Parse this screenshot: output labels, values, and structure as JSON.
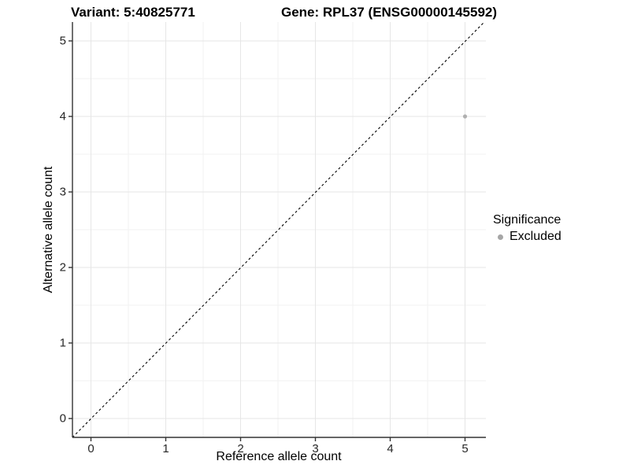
{
  "chart_data": {
    "type": "scatter",
    "title_left": "Variant: 5:40825771",
    "title_right": "Gene: RPL37 (ENSG00000145592)",
    "xlabel": "Reference allele count",
    "ylabel": "Alternative allele count",
    "xlim": [
      -0.25,
      5.3
    ],
    "ylim": [
      -0.25,
      5.25
    ],
    "x_ticks": [
      0,
      1,
      2,
      3,
      4,
      5
    ],
    "y_ticks": [
      0,
      1,
      2,
      3,
      4,
      5
    ],
    "grid": "major+minor",
    "points": [
      {
        "x": 5,
        "y": 4,
        "significance": "Excluded"
      }
    ],
    "reference_line": {
      "type": "identity",
      "style": "dashed"
    },
    "legend": {
      "title": "Significance",
      "position": "right",
      "entries": [
        {
          "label": "Excluded",
          "color": "#a6a6a6"
        }
      ]
    }
  },
  "colors": {
    "background": "#ffffff",
    "point": "#b0b0b0",
    "legend_dot": "#a6a6a6",
    "grid_major": "#e6e6e6",
    "grid_minor": "#f2f2f2",
    "axis_line": "#333333",
    "tick_mark": "#333333",
    "dashed_line": "#000000",
    "tick_text": "#262626",
    "title_text": "#000000"
  }
}
